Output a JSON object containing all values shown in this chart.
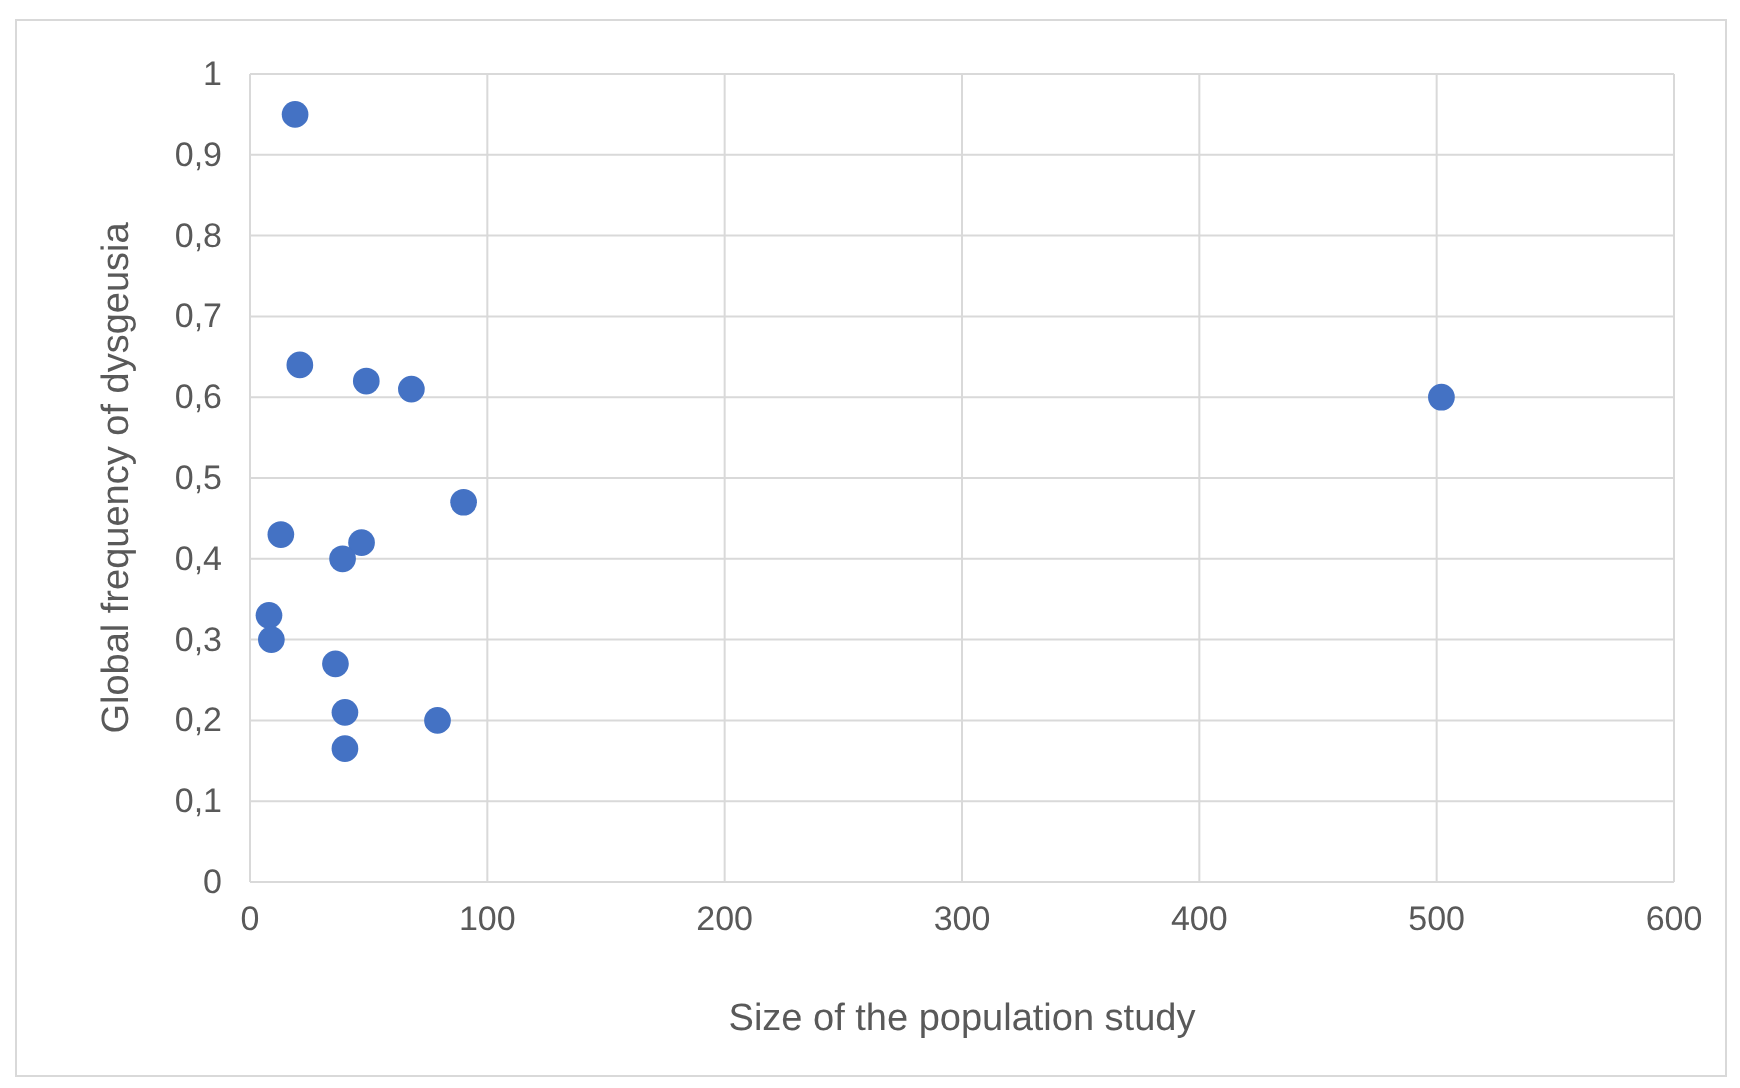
{
  "chart_data": {
    "type": "scatter",
    "xlabel": "Size of the population study",
    "ylabel": "Global frequency of dysgeusia",
    "x": [
      19,
      21,
      49,
      68,
      502,
      90,
      13,
      47,
      39,
      8,
      9,
      36,
      40,
      79,
      40
    ],
    "series": [
      {
        "color": "#4472c4",
        "values": [
          0.95,
          0.64,
          0.62,
          0.61,
          0.6,
          0.47,
          0.43,
          0.42,
          0.4,
          0.33,
          0.3,
          0.27,
          0.21,
          0.2,
          0.165
        ]
      }
    ],
    "xlim": [
      0,
      600
    ],
    "xticks": [
      0,
      100,
      200,
      300,
      400,
      500,
      600
    ],
    "ylim": [
      0,
      1
    ],
    "yticks": [
      0,
      {
        "value": 0.1,
        "label": "0,1"
      },
      {
        "value": 0.2,
        "label": "0,2"
      },
      {
        "value": 0.3,
        "label": "0,3"
      },
      {
        "value": 0.4,
        "label": "0,4"
      },
      {
        "value": 0.5,
        "label": "0,5"
      },
      {
        "value": 0.6,
        "label": "0,6"
      },
      {
        "value": 0.7,
        "label": "0,7"
      },
      {
        "value": 0.8,
        "label": "0,8"
      },
      {
        "value": 0.9,
        "label": "0,9"
      },
      1
    ],
    "grid": true,
    "marker": "circle"
  }
}
